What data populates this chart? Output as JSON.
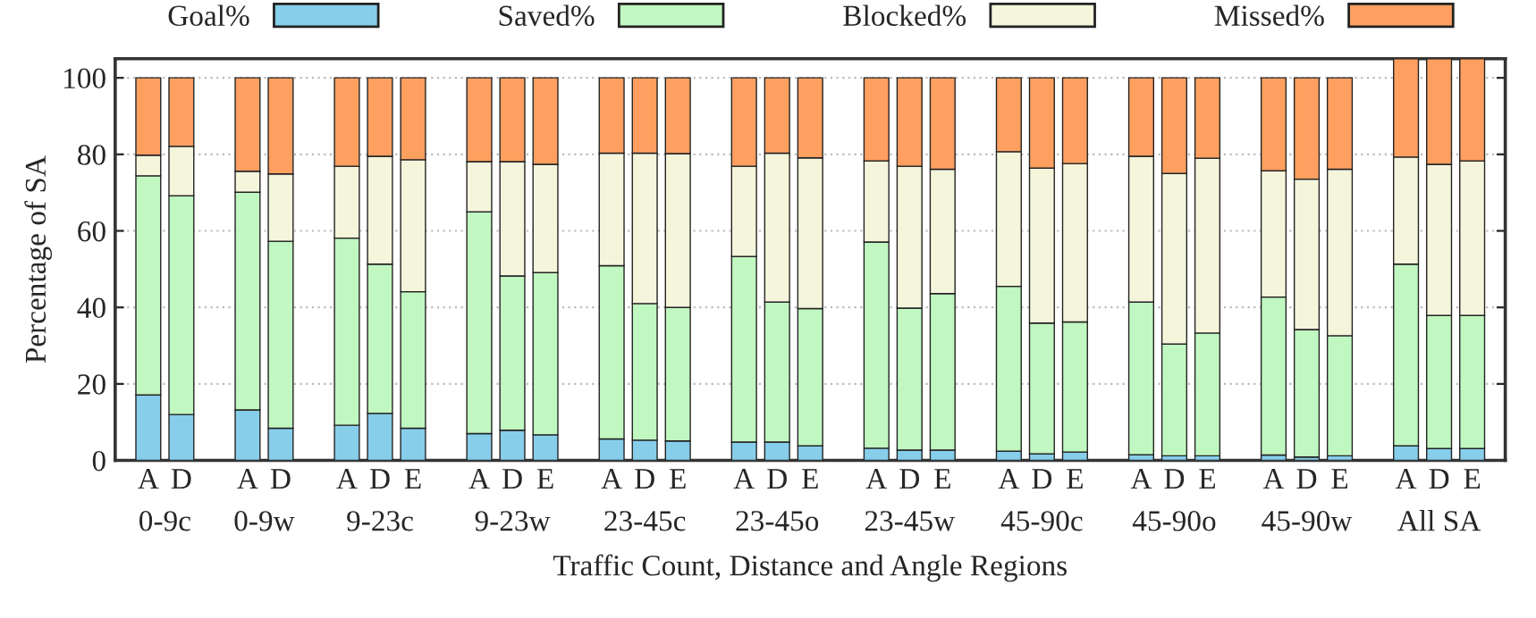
{
  "chart_data": {
    "type": "bar",
    "stacked": true,
    "ylabel": "Percentage of SA",
    "xlabel": "Traffic Count, Distance and Angle Regions",
    "categories": [
      "A",
      "D",
      null,
      "A",
      "D",
      null,
      "A",
      "D",
      "E",
      null,
      "A",
      "D",
      "E",
      null,
      "A",
      "D",
      "E",
      null,
      "A",
      "D",
      "E",
      null,
      "A",
      "D",
      "E",
      null,
      "A",
      "D",
      "E",
      null,
      "A",
      "D",
      "E",
      null,
      "A",
      "D",
      "E",
      null,
      "A",
      "D",
      "E"
    ],
    "annotations": [
      "0-9c",
      "0-9w",
      "9-23c",
      "9-23w",
      "23-45c",
      "23-45o",
      "23-45w",
      "45-90c",
      "45-90o",
      "45-90w",
      "All SA"
    ],
    "series": [
      {
        "name": "Goal%",
        "color": "#87ceeb",
        "values": [
          17.1,
          12,
          null,
          13.2,
          8.4,
          null,
          9.2,
          12.3,
          8.4,
          null,
          7,
          7.9,
          6.7,
          null,
          5.6,
          5.3,
          5.1,
          null,
          4.8,
          4.8,
          3.8,
          null,
          3.2,
          2.7,
          2.7,
          null,
          2.4,
          1.7,
          2.2,
          null,
          1.5,
          1.2,
          1.2,
          null,
          1.4,
          0.9,
          1.2,
          null,
          3.8,
          3.1,
          3.1
        ]
      },
      {
        "name": "Saved%",
        "color": "#c1f7c1",
        "values": [
          57.3,
          57.2,
          null,
          56.9,
          48.9,
          null,
          48.9,
          39,
          35.7,
          null,
          58,
          40.3,
          42.4,
          null,
          45.3,
          35.7,
          34.9,
          null,
          48.5,
          36.6,
          35.9,
          null,
          53.9,
          37.1,
          40.9,
          null,
          43.1,
          34.2,
          34,
          null,
          39.9,
          29.2,
          32.1,
          null,
          41.3,
          33.3,
          31.4,
          null,
          47.5,
          34.8,
          34.8
        ]
      },
      {
        "name": "Blocked%",
        "color": "#f5f5dc",
        "values": [
          5.4,
          12.9,
          null,
          5.5,
          17.6,
          null,
          18.8,
          28.2,
          34.5,
          null,
          13.1,
          29.9,
          28.3,
          null,
          29.4,
          39.3,
          40.2,
          null,
          23.6,
          38.9,
          39.4,
          null,
          21.2,
          37.1,
          32.5,
          null,
          35.2,
          40.5,
          41.4,
          null,
          38.1,
          44.6,
          45.7,
          null,
          33,
          39.3,
          43.5,
          null,
          28,
          39.5,
          40.4
        ]
      },
      {
        "name": "Missed%",
        "color": "#ffa060",
        "values": [
          20.2,
          17.9,
          null,
          24.4,
          25.1,
          null,
          23.1,
          20.5,
          21.4,
          null,
          21.9,
          21.9,
          22.6,
          null,
          19.7,
          19.7,
          19.8,
          null,
          23.1,
          19.7,
          20.9,
          null,
          21.7,
          23.1,
          23.9,
          null,
          19.3,
          23.6,
          22.4,
          null,
          20.5,
          25,
          21,
          null,
          24.3,
          26.5,
          23.9,
          null,
          25.7,
          27.6,
          26.7
        ]
      }
    ],
    "ylim": [
      0,
      105
    ],
    "yticks": [
      0,
      20,
      40,
      60,
      80,
      100
    ],
    "grid": "y",
    "legend": "top"
  }
}
